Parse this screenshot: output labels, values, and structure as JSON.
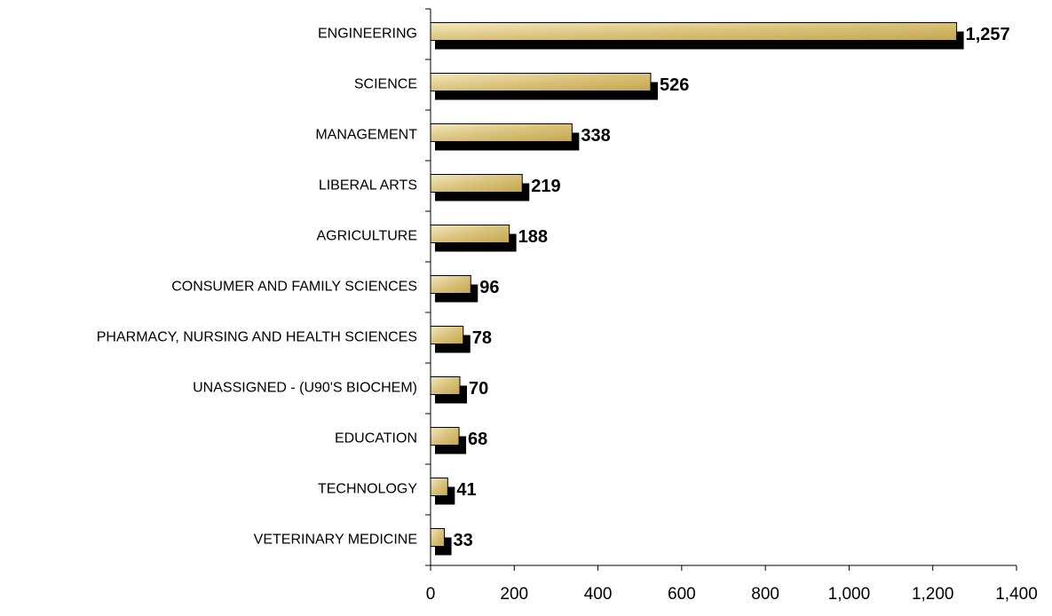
{
  "chart_data": {
    "type": "bar",
    "orientation": "horizontal",
    "categories": [
      "ENGINEERING",
      "SCIENCE",
      "MANAGEMENT",
      "LIBERAL ARTS",
      "AGRICULTURE",
      "CONSUMER AND FAMILY SCIENCES",
      "PHARMACY, NURSING AND HEALTH SCIENCES",
      "UNASSIGNED - (U90'S BIOCHEM)",
      "EDUCATION",
      "TECHNOLOGY",
      "VETERINARY MEDICINE"
    ],
    "values": [
      1257,
      526,
      338,
      219,
      188,
      96,
      78,
      70,
      68,
      41,
      33
    ],
    "value_labels": [
      "1,257",
      "526",
      "338",
      "219",
      "188",
      "96",
      "78",
      "70",
      "68",
      "41",
      "33"
    ],
    "color": "#d9c27a",
    "xlim": [
      0,
      1400
    ],
    "xticks": [
      0,
      200,
      400,
      600,
      800,
      {
        "value": 1000,
        "label": "1,000"
      },
      {
        "value": 1200,
        "label": "1,200"
      },
      {
        "value": 1400,
        "label": "1,400"
      }
    ],
    "grid": false
  }
}
